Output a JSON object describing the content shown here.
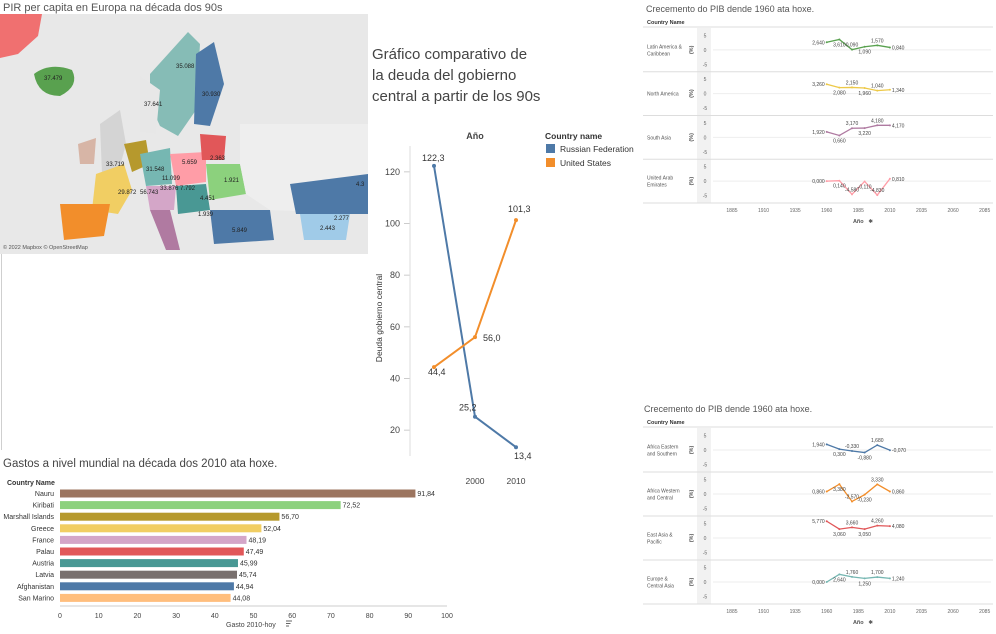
{
  "map": {
    "title": "PIR per capita en Europa na década dos 90s",
    "credit": "© 2022 Mapbox © OpenStreetMap",
    "labels": [
      "37.479",
      "35.088",
      "30.930",
      "37.641",
      "2.363",
      "33.719",
      "31.548",
      "5.659",
      "1.921",
      "29.872",
      "56.743",
      "11.099",
      "33.876",
      "7.792",
      "4.451",
      "1.939",
      "5.849",
      "2.277",
      "2.443",
      "4.3"
    ],
    "colors": {
      "sea": "#e8e8e8",
      "land": "#d6d6d6"
    }
  },
  "debt": {
    "title": "Gráfico comparativo de la deuda del gobierno central  a partir de los 90s",
    "column_header": "Año",
    "legend_title": "Country name",
    "legend": [
      {
        "name": "Russian Federation",
        "color": "#4e79a7"
      },
      {
        "name": "United States",
        "color": "#f28e2b"
      }
    ],
    "ylabel": "Deuda gobierno central",
    "yticks": [
      "120",
      "100",
      "80",
      "60",
      "40",
      "20"
    ],
    "xticks": [
      "2000",
      "2010"
    ],
    "chart_data": {
      "type": "line",
      "x": [
        1990,
        2000,
        2010
      ],
      "ylim": [
        10,
        130
      ],
      "series": [
        {
          "name": "Russian Federation",
          "color": "#4e79a7",
          "values": [
            122.3,
            25.2,
            13.4
          ],
          "labels": [
            "122,3",
            "25,2",
            "13,4"
          ]
        },
        {
          "name": "United States",
          "color": "#f28e2b",
          "values": [
            44.4,
            56.0,
            101.3
          ],
          "labels": [
            "44,4",
            "56,0",
            "101,3"
          ]
        }
      ]
    }
  },
  "spend": {
    "title": "Gastos a nivel mundial na década dos 2010 ata hoxe.",
    "row_header": "Country Name",
    "xlabel": "Gasto 2010-hoy",
    "xticks": [
      "0",
      "10",
      "20",
      "30",
      "40",
      "50",
      "60",
      "70",
      "80",
      "90",
      "100"
    ],
    "chart_data": {
      "type": "bar",
      "xlim": [
        0,
        100
      ],
      "categories": [
        "Nauru",
        "Kiribati",
        "Marshall Islands",
        "Greece",
        "France",
        "Palau",
        "Austria",
        "Latvia",
        "Afghanistan",
        "San Marino"
      ],
      "values": [
        91.84,
        72.52,
        56.7,
        52.04,
        48.19,
        47.49,
        45.99,
        45.74,
        44.94,
        44.08
      ],
      "labels": [
        "91,84",
        "72,52",
        "56,70",
        "52,04",
        "48,19",
        "47,49",
        "45,99",
        "45,74",
        "44,94",
        "44,08"
      ],
      "colors": [
        "#9c755f",
        "#8cd17d",
        "#b6992d",
        "#f1ce63",
        "#d4a6c8",
        "#e15759",
        "#499894",
        "#79706e",
        "#4e79a7",
        "#ffbe7d"
      ]
    }
  },
  "gdp_top": {
    "title": "Crecemento do PIB dende 1960 ata hoxe.",
    "row_header": "Country Name",
    "axis_label": "(%)",
    "xlabel": "Año",
    "yticks": [
      "5",
      "0",
      "-5"
    ],
    "xticks": [
      "1885",
      "1910",
      "1935",
      "1960",
      "1985",
      "2010",
      "2035",
      "2060",
      "2085"
    ],
    "chart_data": {
      "type": "line",
      "xlim": [
        1870,
        2090
      ],
      "ylim": [
        -5,
        5
      ],
      "panels": [
        {
          "name": "Latin America & Caribbean",
          "color": "#59a14f",
          "points": [
            [
              1960,
              2.64
            ],
            [
              1970,
              3.61
            ],
            [
              1980,
              0.09
            ],
            [
              1990,
              1.09
            ],
            [
              2000,
              1.57
            ],
            [
              2010,
              0.84
            ]
          ],
          "labels": [
            "2,640",
            "3,610",
            "0,090",
            "1,090",
            "1,570",
            "0,840"
          ]
        },
        {
          "name": "North America",
          "color": "#edc948",
          "points": [
            [
              1960,
              3.26
            ],
            [
              1970,
              2.08
            ],
            [
              1980,
              2.15
            ],
            [
              1990,
              1.96
            ],
            [
              2000,
              1.04
            ],
            [
              2010,
              1.34
            ]
          ],
          "labels": [
            "3,260",
            "2,080",
            "2,150",
            "1,960",
            "1,040",
            "1,340"
          ]
        },
        {
          "name": "South Asia",
          "color": "#af7aa1",
          "points": [
            [
              1960,
              1.92
            ],
            [
              1970,
              0.66
            ],
            [
              1980,
              3.17
            ],
            [
              1990,
              3.22
            ],
            [
              2000,
              4.18
            ],
            [
              2010,
              4.17
            ]
          ],
          "labels": [
            "1,920",
            "0,660",
            "3,170",
            "3,220",
            "4,180",
            "4,170"
          ]
        },
        {
          "name": "United Arab Emirates",
          "color": "#ff9da7",
          "points": [
            [
              1960,
              0.0
            ],
            [
              1970,
              0.14
            ],
            [
              1980,
              -4.58
            ],
            [
              1990,
              -0.11
            ],
            [
              2000,
              -4.83
            ],
            [
              2010,
              0.81
            ]
          ],
          "labels": [
            "0,000",
            "0,140",
            "-4,580",
            "-0,110",
            "-4,830",
            "0,810"
          ]
        }
      ]
    }
  },
  "gdp_bottom": {
    "title": "Crecemento do PIB dende 1960 ata hoxe.",
    "row_header": "Country Name",
    "axis_label": "(%)",
    "xlabel": "Año",
    "yticks": [
      "5",
      "0",
      "-5"
    ],
    "xticks": [
      "1885",
      "1910",
      "1935",
      "1960",
      "1985",
      "2010",
      "2035",
      "2060",
      "2085"
    ],
    "chart_data": {
      "type": "line",
      "xlim": [
        1870,
        2090
      ],
      "ylim": [
        -5,
        5
      ],
      "panels": [
        {
          "name": "Africa Eastern and Southern",
          "color": "#4e79a7",
          "points": [
            [
              1960,
              1.94
            ],
            [
              1970,
              0.3
            ],
            [
              1980,
              -0.33
            ],
            [
              1990,
              -0.88
            ],
            [
              2000,
              1.68
            ],
            [
              2010,
              -0.07
            ]
          ],
          "labels": [
            "1,940",
            "0,300",
            "-0,330",
            "-0,880",
            "1,680",
            "-0,070"
          ]
        },
        {
          "name": "Africa Western and Central",
          "color": "#f28e2b",
          "points": [
            [
              1960,
              0.86
            ],
            [
              1970,
              3.38
            ],
            [
              1980,
              -2.57
            ],
            [
              1990,
              -0.23
            ],
            [
              2000,
              3.33
            ],
            [
              2010,
              0.86
            ]
          ],
          "labels": [
            "0,860",
            "3,380",
            "-2,570",
            "-0,230",
            "3,330",
            "0,860"
          ]
        },
        {
          "name": "East Asia & Pacific",
          "color": "#e15759",
          "points": [
            [
              1960,
              5.77
            ],
            [
              1970,
              3.06
            ],
            [
              1980,
              3.66
            ],
            [
              1990,
              3.05
            ],
            [
              2000,
              4.26
            ],
            [
              2010,
              4.08
            ]
          ],
          "labels": [
            "5,770",
            "3,060",
            "3,660",
            "3,050",
            "4,260",
            "4,080"
          ]
        },
        {
          "name": "Europe & Central Asia",
          "color": "#76b7b2",
          "points": [
            [
              1960,
              0.0
            ],
            [
              1970,
              2.64
            ],
            [
              1980,
              1.76
            ],
            [
              1990,
              1.25
            ],
            [
              2000,
              1.7
            ],
            [
              2010,
              1.24
            ]
          ],
          "labels": [
            "0,000",
            "2,640",
            "1,760",
            "1,250",
            "1,700",
            "1,240"
          ]
        }
      ]
    }
  }
}
